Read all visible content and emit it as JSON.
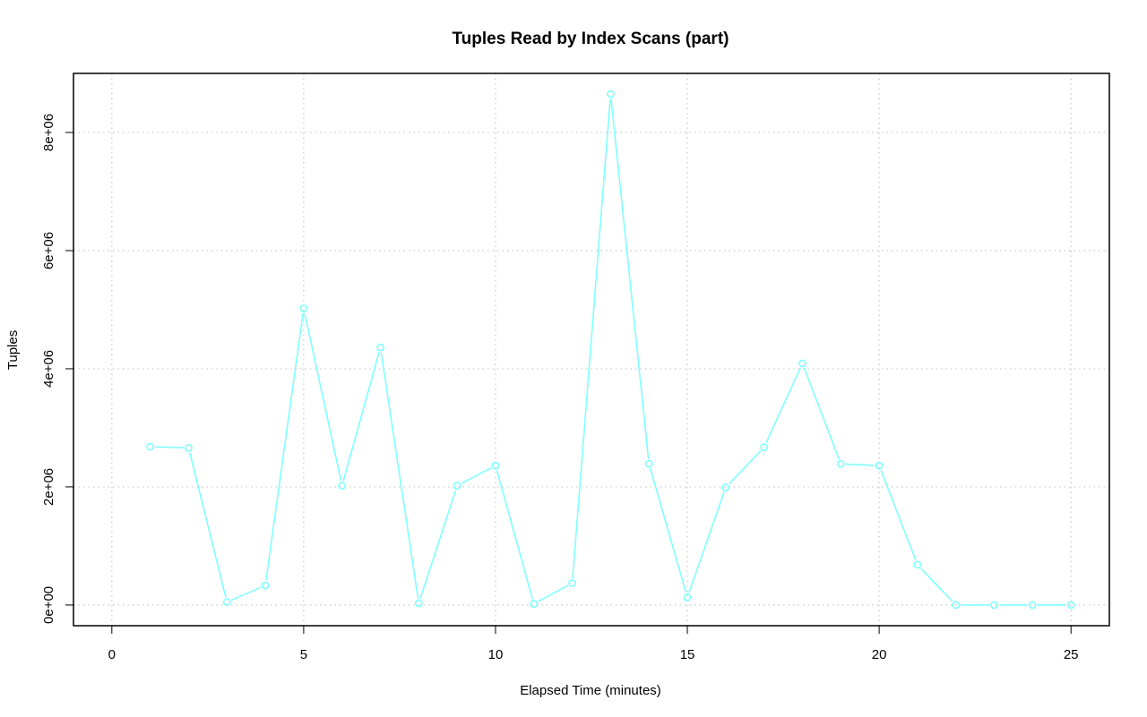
{
  "chart_data": {
    "type": "line",
    "title": "Tuples Read by Index Scans (part)",
    "xlabel": "Elapsed Time (minutes)",
    "ylabel": "Tuples",
    "xlim": [
      -1,
      26
    ],
    "ylim": [
      -350000,
      9000000
    ],
    "x_ticks": [
      0,
      5,
      10,
      15,
      20,
      25
    ],
    "x_tick_labels": [
      "0",
      "5",
      "10",
      "15",
      "20",
      "25"
    ],
    "y_ticks": [
      0,
      2000000,
      4000000,
      6000000,
      8000000
    ],
    "y_tick_labels": [
      "0e+00",
      "2e+06",
      "4e+06",
      "6e+06",
      "8e+06"
    ],
    "grid": true,
    "series": [
      {
        "color": "#7fffff",
        "x": [
          1,
          2,
          3,
          4,
          5,
          6,
          7,
          8,
          9,
          10,
          11,
          12,
          13,
          14,
          15,
          16,
          17,
          18,
          19,
          20,
          21,
          22,
          23,
          24,
          25
        ],
        "values": [
          2680000,
          2660000,
          50000,
          330000,
          5020000,
          2020000,
          4360000,
          30000,
          2020000,
          2360000,
          20000,
          370000,
          8650000,
          2390000,
          130000,
          1990000,
          2670000,
          4090000,
          2390000,
          2360000,
          680000,
          0,
          0,
          0,
          0
        ]
      }
    ]
  }
}
